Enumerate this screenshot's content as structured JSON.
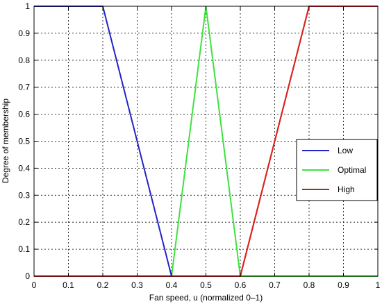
{
  "chart_data": {
    "type": "line",
    "xlabel": "Fan speed, u (normalized 0–1)",
    "ylabel": "Degree of membership",
    "xlim": [
      0,
      1
    ],
    "ylim": [
      0,
      1
    ],
    "x_ticks": [
      "0",
      "0.1",
      "0.2",
      "0.3",
      "0.4",
      "0.5",
      "0.6",
      "0.7",
      "0.8",
      "0.9",
      "1"
    ],
    "y_ticks": [
      "0",
      "0.1",
      "0.2",
      "0.3",
      "0.4",
      "0.5",
      "0.6",
      "0.7",
      "0.8",
      "0.9",
      "1"
    ],
    "grid": true,
    "legend": "right",
    "series": [
      {
        "name": "Low",
        "color": "#2323c8",
        "x": [
          0,
          0.2,
          0.4,
          1.0
        ],
        "y": [
          1,
          1,
          0,
          0
        ]
      },
      {
        "name": "Optimal",
        "color": "#3ee23e",
        "x": [
          0,
          0.4,
          0.5,
          0.6,
          1.0
        ],
        "y": [
          0,
          0,
          1,
          0,
          0
        ]
      },
      {
        "name": "High",
        "color": "#8b3a1a",
        "x": [
          0,
          0.6,
          0.8,
          1.0
        ],
        "y": [
          0,
          0,
          1,
          1
        ]
      }
    ],
    "overlay": {
      "color": "#e02020",
      "x": [
        0,
        0.6,
        0.8,
        1.0
      ],
      "y": [
        0,
        0,
        1,
        1
      ]
    }
  }
}
